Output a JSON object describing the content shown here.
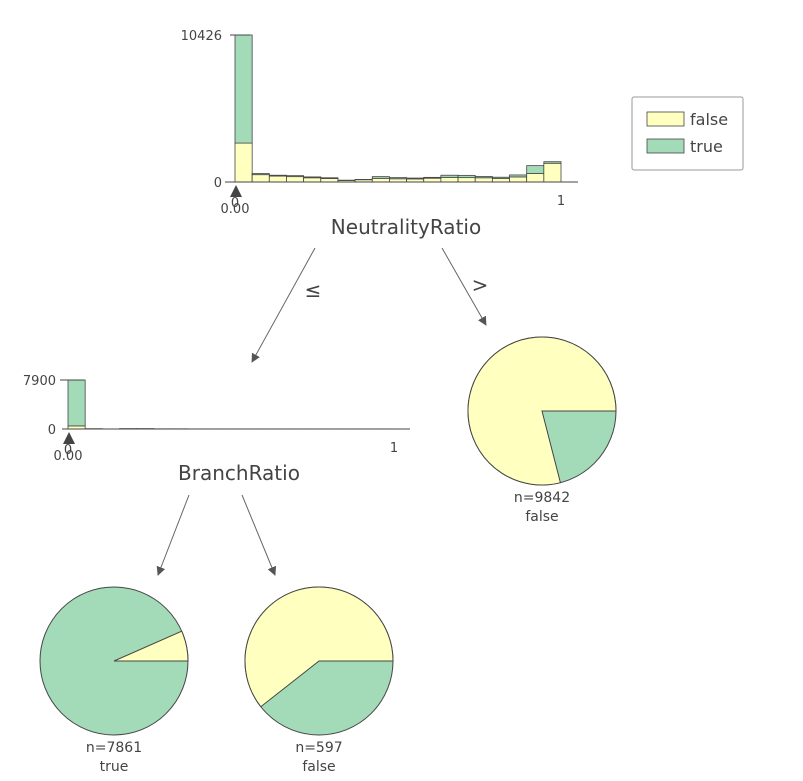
{
  "colors": {
    "false": "#ffffc0",
    "true": "#a3dbb9",
    "outline": "#444444",
    "edge": "#666666"
  },
  "legend": {
    "items": [
      {
        "label": "false",
        "color": "#ffffc0"
      },
      {
        "label": "true",
        "color": "#a3dbb9"
      }
    ]
  },
  "root": {
    "feature": "NeutralityRatio",
    "ymax_label": "10426",
    "ymin_label": "0",
    "x_left_label": "0",
    "split_label": "0.00",
    "x_right_label": "1",
    "edge_left": "≤",
    "edge_right": ">"
  },
  "inner": {
    "feature": "BranchRatio",
    "ymax_label": "7900",
    "ymin_label": "0",
    "x_left_label": "0",
    "split_label": "0.00",
    "x_right_label": "1"
  },
  "leaves": [
    {
      "id": "leaf-right",
      "n_label": "n=9842",
      "class_label": "false",
      "false_fraction": 0.79
    },
    {
      "id": "leaf-left-left",
      "n_label": "n=7861",
      "class_label": "true",
      "false_fraction": 0.066
    },
    {
      "id": "leaf-left-right",
      "n_label": "n=597",
      "class_label": "false",
      "false_fraction": 0.606
    }
  ],
  "chart_data": [
    {
      "type": "bar",
      "feature": "NeutralityRatio",
      "xlim": [
        0,
        1
      ],
      "ylim": [
        0,
        10426
      ],
      "stacked": true,
      "series": [
        {
          "name": "false",
          "values": [
            2760,
            520,
            420,
            380,
            300,
            250,
            110,
            160,
            260,
            230,
            220,
            270,
            330,
            310,
            300,
            260,
            360,
            600,
            1330
          ]
        },
        {
          "name": "true",
          "values": [
            7666,
            80,
            60,
            70,
            60,
            50,
            20,
            20,
            120,
            80,
            60,
            60,
            150,
            160,
            90,
            80,
            140,
            560,
            110
          ]
        }
      ]
    },
    {
      "type": "bar",
      "feature": "BranchRatio",
      "xlim": [
        0,
        1
      ],
      "ylim": [
        0,
        7900
      ],
      "stacked": true,
      "series": [
        {
          "name": "false",
          "values": [
            500,
            30,
            10,
            40,
            40,
            30,
            30,
            20,
            20,
            20,
            20,
            20,
            20,
            20,
            20,
            20,
            20,
            20,
            20
          ]
        },
        {
          "name": "true",
          "values": [
            7400,
            10,
            0,
            10,
            10,
            0,
            0,
            0,
            0,
            0,
            0,
            0,
            0,
            0,
            0,
            0,
            0,
            0,
            0
          ]
        }
      ]
    }
  ]
}
